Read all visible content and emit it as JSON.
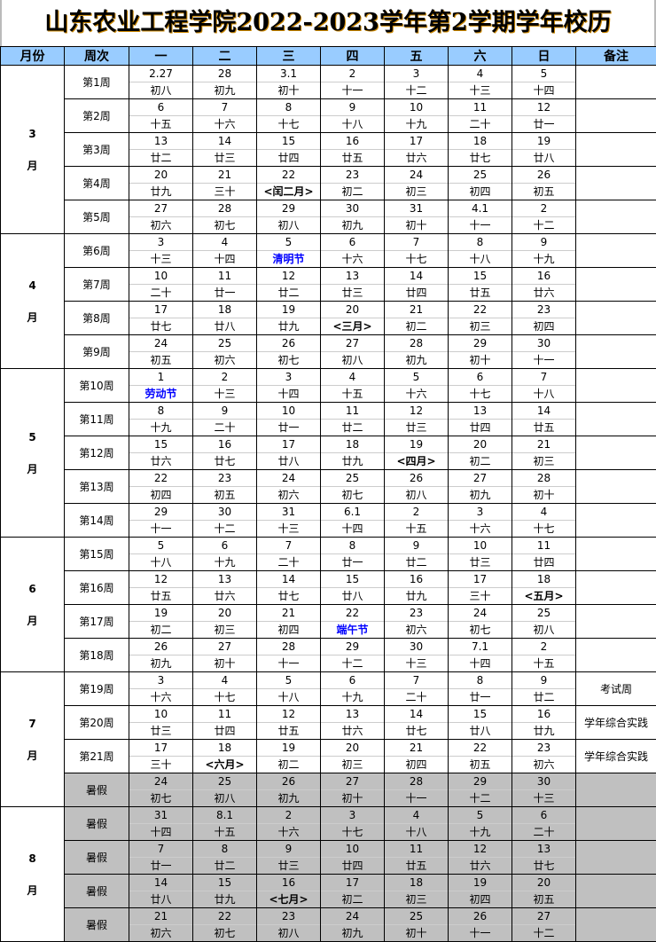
{
  "title": "山东农业工程学院2022-2023学年第2学期学年校历",
  "headers": [
    "月份",
    "周次",
    "一",
    "二",
    "三",
    "四",
    "五",
    "六",
    "日",
    "备注"
  ],
  "colors": {
    "header_bg": "#99ccff",
    "holiday_text": "#0000ff",
    "summer_bg": "#c0c0c0"
  },
  "months": [
    {
      "label": "3",
      "suffix": "月",
      "rows": [
        {
          "week": "第1周",
          "days": [
            [
              "2.27",
              "初八"
            ],
            [
              "28",
              "初九"
            ],
            [
              "3.1",
              "初十"
            ],
            [
              "2",
              "十一"
            ],
            [
              "3",
              "十二"
            ],
            [
              "4",
              "十三"
            ],
            [
              "5",
              "十四"
            ]
          ]
        },
        {
          "week": "第2周",
          "days": [
            [
              "6",
              "十五"
            ],
            [
              "7",
              "十六"
            ],
            [
              "8",
              "十七"
            ],
            [
              "9",
              "十八"
            ],
            [
              "10",
              "十九"
            ],
            [
              "11",
              "二十"
            ],
            [
              "12",
              "廿一"
            ]
          ]
        },
        {
          "week": "第3周",
          "days": [
            [
              "13",
              "廿二"
            ],
            [
              "14",
              "廿三"
            ],
            [
              "15",
              "廿四"
            ],
            [
              "16",
              "廿五"
            ],
            [
              "17",
              "廿六"
            ],
            [
              "18",
              "廿七"
            ],
            [
              "19",
              "廿八"
            ]
          ]
        },
        {
          "week": "第4周",
          "days": [
            [
              "20",
              "廿九"
            ],
            [
              "21",
              "三十"
            ],
            [
              "22",
              "<闰二月>",
              "hl"
            ],
            [
              "23",
              "初二"
            ],
            [
              "24",
              "初三"
            ],
            [
              "25",
              "初四"
            ],
            [
              "26",
              "初五"
            ]
          ]
        },
        {
          "week": "第5周",
          "days": [
            [
              "27",
              "初六"
            ],
            [
              "28",
              "初七"
            ],
            [
              "29",
              "初八"
            ],
            [
              "30",
              "初九"
            ],
            [
              "31",
              "初十"
            ],
            [
              "4.1",
              "十一"
            ],
            [
              "2",
              "十二"
            ]
          ]
        }
      ]
    },
    {
      "label": "4",
      "suffix": "月",
      "rows": [
        {
          "week": "第6周",
          "days": [
            [
              "3",
              "十三"
            ],
            [
              "4",
              "十四"
            ],
            [
              "5",
              "清明节",
              "hol"
            ],
            [
              "6",
              "十六"
            ],
            [
              "7",
              "十七"
            ],
            [
              "8",
              "十八"
            ],
            [
              "9",
              "十九"
            ]
          ]
        },
        {
          "week": "第7周",
          "days": [
            [
              "10",
              "二十"
            ],
            [
              "11",
              "廿一"
            ],
            [
              "12",
              "廿二"
            ],
            [
              "13",
              "廿三"
            ],
            [
              "14",
              "廿四"
            ],
            [
              "15",
              "廿五"
            ],
            [
              "16",
              "廿六"
            ]
          ]
        },
        {
          "week": "第8周",
          "days": [
            [
              "17",
              "廿七"
            ],
            [
              "18",
              "廿八"
            ],
            [
              "19",
              "廿九"
            ],
            [
              "20",
              "<三月>",
              "hl"
            ],
            [
              "21",
              "初二"
            ],
            [
              "22",
              "初三"
            ],
            [
              "23",
              "初四"
            ]
          ]
        },
        {
          "week": "第9周",
          "days": [
            [
              "24",
              "初五"
            ],
            [
              "25",
              "初六"
            ],
            [
              "26",
              "初七"
            ],
            [
              "27",
              "初八"
            ],
            [
              "28",
              "初九"
            ],
            [
              "29",
              "初十"
            ],
            [
              "30",
              "十一"
            ]
          ]
        }
      ]
    },
    {
      "label": "5",
      "suffix": "月",
      "rows": [
        {
          "week": "第10周",
          "days": [
            [
              "1",
              "劳动节",
              "hol"
            ],
            [
              "2",
              "十三"
            ],
            [
              "3",
              "十四"
            ],
            [
              "4",
              "十五"
            ],
            [
              "5",
              "十六"
            ],
            [
              "6",
              "十七"
            ],
            [
              "7",
              "十八"
            ]
          ]
        },
        {
          "week": "第11周",
          "days": [
            [
              "8",
              "十九"
            ],
            [
              "9",
              "二十"
            ],
            [
              "10",
              "廿一"
            ],
            [
              "11",
              "廿二"
            ],
            [
              "12",
              "廿三"
            ],
            [
              "13",
              "廿四"
            ],
            [
              "14",
              "廿五"
            ]
          ]
        },
        {
          "week": "第12周",
          "days": [
            [
              "15",
              "廿六"
            ],
            [
              "16",
              "廿七"
            ],
            [
              "17",
              "廿八"
            ],
            [
              "18",
              "廿九"
            ],
            [
              "19",
              "<四月>",
              "hl"
            ],
            [
              "20",
              "初二"
            ],
            [
              "21",
              "初三"
            ]
          ]
        },
        {
          "week": "第13周",
          "days": [
            [
              "22",
              "初四"
            ],
            [
              "23",
              "初五"
            ],
            [
              "24",
              "初六"
            ],
            [
              "25",
              "初七"
            ],
            [
              "26",
              "初八"
            ],
            [
              "27",
              "初九"
            ],
            [
              "28",
              "初十"
            ]
          ]
        },
        {
          "week": "第14周",
          "days": [
            [
              "29",
              "十一"
            ],
            [
              "30",
              "十二"
            ],
            [
              "31",
              "十三"
            ],
            [
              "6.1",
              "十四"
            ],
            [
              "2",
              "十五"
            ],
            [
              "3",
              "十六"
            ],
            [
              "4",
              "十七"
            ]
          ]
        }
      ]
    },
    {
      "label": "6",
      "suffix": "月",
      "rows": [
        {
          "week": "第15周",
          "days": [
            [
              "5",
              "十八"
            ],
            [
              "6",
              "十九"
            ],
            [
              "7",
              "二十"
            ],
            [
              "8",
              "廿一"
            ],
            [
              "9",
              "廿二"
            ],
            [
              "10",
              "廿三"
            ],
            [
              "11",
              "廿四"
            ]
          ]
        },
        {
          "week": "第16周",
          "days": [
            [
              "12",
              "廿五"
            ],
            [
              "13",
              "廿六"
            ],
            [
              "14",
              "廿七"
            ],
            [
              "15",
              "廿八"
            ],
            [
              "16",
              "廿九"
            ],
            [
              "17",
              "三十"
            ],
            [
              "18",
              "<五月>",
              "hl"
            ]
          ]
        },
        {
          "week": "第17周",
          "days": [
            [
              "19",
              "初二"
            ],
            [
              "20",
              "初三"
            ],
            [
              "21",
              "初四"
            ],
            [
              "22",
              "端午节",
              "hol"
            ],
            [
              "23",
              "初六"
            ],
            [
              "24",
              "初七"
            ],
            [
              "25",
              "初八"
            ]
          ]
        },
        {
          "week": "第18周",
          "days": [
            [
              "26",
              "初九"
            ],
            [
              "27",
              "初十"
            ],
            [
              "28",
              "十一"
            ],
            [
              "29",
              "十二"
            ],
            [
              "30",
              "十三"
            ],
            [
              "7.1",
              "十四"
            ],
            [
              "2",
              "十五"
            ]
          ]
        }
      ]
    },
    {
      "label": "7",
      "suffix": "月",
      "rows": [
        {
          "week": "第19周",
          "note": "考试周",
          "days": [
            [
              "3",
              "十六"
            ],
            [
              "4",
              "十七"
            ],
            [
              "5",
              "十八"
            ],
            [
              "6",
              "十九"
            ],
            [
              "7",
              "二十"
            ],
            [
              "8",
              "廿一"
            ],
            [
              "9",
              "廿二"
            ]
          ]
        },
        {
          "week": "第20周",
          "note": "学年综合实践",
          "days": [
            [
              "10",
              "廿三"
            ],
            [
              "11",
              "廿四"
            ],
            [
              "12",
              "廿五"
            ],
            [
              "13",
              "廿六"
            ],
            [
              "14",
              "廿七"
            ],
            [
              "15",
              "廿八"
            ],
            [
              "16",
              "廿九"
            ]
          ]
        },
        {
          "week": "第21周",
          "note": "学年综合实践",
          "days": [
            [
              "17",
              "三十"
            ],
            [
              "18",
              "<六月>",
              "hl"
            ],
            [
              "19",
              "初二"
            ],
            [
              "20",
              "初三"
            ],
            [
              "21",
              "初四"
            ],
            [
              "22",
              "初五"
            ],
            [
              "23",
              "初六"
            ]
          ]
        },
        {
          "week": "暑假",
          "summer": true,
          "days": [
            [
              "24",
              "初七"
            ],
            [
              "25",
              "初八"
            ],
            [
              "26",
              "初九"
            ],
            [
              "27",
              "初十"
            ],
            [
              "28",
              "十一"
            ],
            [
              "29",
              "十二"
            ],
            [
              "30",
              "十三"
            ]
          ]
        }
      ]
    },
    {
      "label": "8",
      "suffix": "月",
      "rows": [
        {
          "week": "暑假",
          "summer": true,
          "days": [
            [
              "31",
              "十四"
            ],
            [
              "8.1",
              "十五"
            ],
            [
              "2",
              "十六"
            ],
            [
              "3",
              "十七"
            ],
            [
              "4",
              "十八"
            ],
            [
              "5",
              "十九"
            ],
            [
              "6",
              "二十"
            ]
          ]
        },
        {
          "week": "暑假",
          "summer": true,
          "days": [
            [
              "7",
              "廿一"
            ],
            [
              "8",
              "廿二"
            ],
            [
              "9",
              "廿三"
            ],
            [
              "10",
              "廿四"
            ],
            [
              "11",
              "廿五"
            ],
            [
              "12",
              "廿六"
            ],
            [
              "13",
              "廿七"
            ]
          ]
        },
        {
          "week": "暑假",
          "summer": true,
          "days": [
            [
              "14",
              "廿八"
            ],
            [
              "15",
              "廿九"
            ],
            [
              "16",
              "<七月>",
              "hl"
            ],
            [
              "17",
              "初二"
            ],
            [
              "18",
              "初三"
            ],
            [
              "19",
              "初四"
            ],
            [
              "20",
              "初五"
            ]
          ]
        },
        {
          "week": "暑假",
          "summer": true,
          "days": [
            [
              "21",
              "初六"
            ],
            [
              "22",
              "初七"
            ],
            [
              "23",
              "初八"
            ],
            [
              "24",
              "初九"
            ],
            [
              "25",
              "初十"
            ],
            [
              "26",
              "十一"
            ],
            [
              "27",
              "十二"
            ]
          ]
        }
      ]
    }
  ]
}
